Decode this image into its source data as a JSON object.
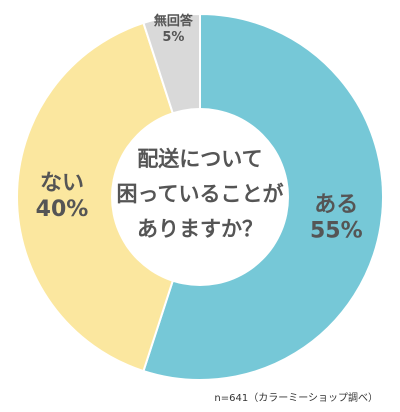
{
  "chart_data": {
    "type": "pie",
    "style": "donut",
    "title_lines": [
      "配送について",
      "困っていることが",
      "ありますか？"
    ],
    "slices": [
      {
        "label": "ある",
        "value": 55,
        "value_text": "55%",
        "color": "#76c8d7"
      },
      {
        "label": "ない",
        "value": 40,
        "value_text": "40%",
        "color": "#fbe79f"
      },
      {
        "label": "無回答",
        "value": 5,
        "value_text": "5%",
        "color": "#d9d9d9"
      }
    ]
  },
  "source_note": "n=641（カラーミーショップ調べ）"
}
